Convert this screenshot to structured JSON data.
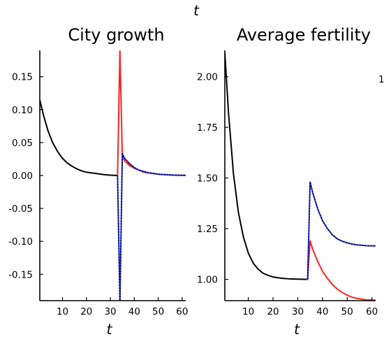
{
  "top_label": "t",
  "side_fragment": "1",
  "chart_data": [
    {
      "type": "line",
      "title": "City growth",
      "xlabel": "t",
      "ylabel": "",
      "xlim": [
        0.5,
        61.5
      ],
      "ylim": [
        -0.19,
        0.19
      ],
      "xticks": [
        10,
        20,
        30,
        40,
        50,
        60
      ],
      "yticks": [
        0.15,
        0.1,
        0.05,
        0.0,
        -0.05,
        -0.1,
        -0.15
      ],
      "ytick_labels": [
        "0.15",
        "0.10",
        "0.05",
        "0.00",
        "-0.05",
        "-0.10",
        "-0.15"
      ],
      "series": [
        {
          "color": "#000000",
          "dash": "solid",
          "x": [
            0.5,
            2,
            4,
            6,
            8,
            10,
            12,
            14,
            16,
            18,
            20,
            22,
            24,
            26,
            28,
            30,
            33
          ],
          "y": [
            0.115,
            0.092,
            0.067,
            0.049,
            0.036,
            0.026,
            0.019,
            0.014,
            0.01,
            0.007,
            0.005,
            0.004,
            0.003,
            0.002,
            0.001,
            0.0005,
            0.0
          ]
        },
        {
          "color": "#ff2020",
          "dash": "solid",
          "x": [
            33,
            34,
            35,
            36,
            38,
            40,
            42,
            44,
            46,
            48,
            50,
            52,
            54,
            56,
            58,
            61.5
          ],
          "y": [
            0.0,
            0.19,
            0.028,
            0.022,
            0.015,
            0.011,
            0.008,
            0.005,
            0.004,
            0.003,
            0.002,
            0.0015,
            0.001,
            0.0007,
            0.0004,
            0.0002
          ]
        },
        {
          "color": "#2030ff",
          "dash": "solid",
          "x": [
            33,
            34,
            35,
            36,
            38,
            40,
            42,
            44,
            46,
            48,
            50,
            52,
            54,
            56,
            58,
            61.5
          ],
          "y": [
            0.0,
            -0.19,
            0.033,
            0.026,
            0.018,
            0.012,
            0.008,
            0.006,
            0.004,
            0.003,
            0.002,
            0.0014,
            0.001,
            0.0007,
            0.0004,
            0.0002
          ]
        },
        {
          "color": "#000000",
          "dash": "dotted",
          "x": [
            33,
            34,
            35,
            36,
            38,
            40,
            42,
            44,
            46,
            48,
            50,
            52,
            54,
            56,
            58,
            61.5
          ],
          "y": [
            0.0,
            -0.19,
            0.033,
            0.026,
            0.018,
            0.012,
            0.008,
            0.006,
            0.004,
            0.003,
            0.002,
            0.0014,
            0.001,
            0.0007,
            0.0004,
            0.0002
          ]
        }
      ]
    },
    {
      "type": "line",
      "title": "Average fertility",
      "xlabel": "t",
      "ylabel": "",
      "xlim": [
        0.5,
        61.5
      ],
      "ylim": [
        0.895,
        2.13
      ],
      "xticks": [
        10,
        20,
        30,
        40,
        50,
        60
      ],
      "yticks": [
        2.0,
        1.75,
        1.5,
        1.25,
        1.0
      ],
      "ytick_labels": [
        "2.00",
        "1.75",
        "1.50",
        "1.25",
        "1.00"
      ],
      "series": [
        {
          "color": "#000000",
          "dash": "solid",
          "x": [
            0.5,
            2,
            4,
            6,
            8,
            10,
            12,
            14,
            16,
            18,
            20,
            22,
            24,
            26,
            28,
            30,
            33
          ],
          "y": [
            2.12,
            1.82,
            1.52,
            1.33,
            1.21,
            1.13,
            1.08,
            1.05,
            1.03,
            1.02,
            1.012,
            1.008,
            1.005,
            1.003,
            1.002,
            1.001,
            1.0
          ]
        },
        {
          "color": "#ff2020",
          "dash": "solid",
          "x": [
            33,
            34,
            35,
            36,
            38,
            40,
            42,
            44,
            46,
            48,
            50,
            52,
            54,
            56,
            58,
            61.5
          ],
          "y": [
            1.0,
            1.0,
            1.19,
            1.15,
            1.09,
            1.04,
            1.005,
            0.975,
            0.952,
            0.935,
            0.922,
            0.912,
            0.906,
            0.902,
            0.899,
            0.897
          ]
        },
        {
          "color": "#2030ff",
          "dash": "solid",
          "x": [
            33,
            34,
            35,
            36,
            38,
            40,
            42,
            44,
            46,
            48,
            50,
            52,
            54,
            56,
            58,
            61.5
          ],
          "y": [
            1.0,
            1.0,
            1.48,
            1.43,
            1.35,
            1.29,
            1.25,
            1.22,
            1.2,
            1.188,
            1.18,
            1.174,
            1.17,
            1.168,
            1.166,
            1.165
          ]
        },
        {
          "color": "#000000",
          "dash": "dotted",
          "x": [
            33,
            34,
            35,
            36,
            38,
            40,
            42,
            44,
            46,
            48,
            50,
            52,
            54,
            56,
            58,
            61.5
          ],
          "y": [
            1.0,
            1.0,
            1.48,
            1.43,
            1.35,
            1.29,
            1.25,
            1.22,
            1.2,
            1.188,
            1.18,
            1.174,
            1.17,
            1.168,
            1.166,
            1.165
          ]
        }
      ]
    }
  ]
}
